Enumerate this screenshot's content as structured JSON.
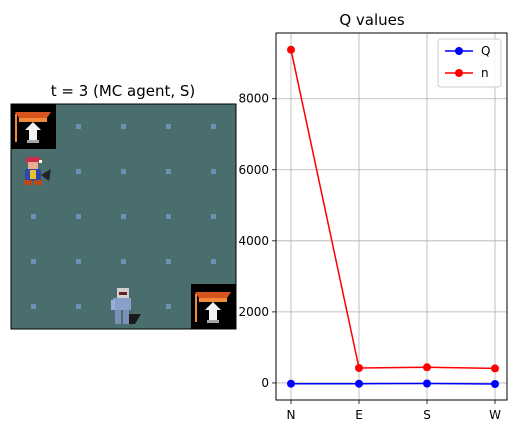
{
  "grid_panel": {
    "title": "t = 3 (MC agent, S)",
    "cols": 5,
    "rows": 5,
    "floor_color": "#4a6e6e",
    "dot_color": "#6f8fb5",
    "sprites": [
      {
        "name": "ladder-top-left-icon",
        "col": 0,
        "row": 0
      },
      {
        "name": "ladder-bottom-right-icon",
        "col": 4,
        "row": 4
      },
      {
        "name": "rogue-npc-icon",
        "col": 0,
        "row": 1
      },
      {
        "name": "agent-figure-icon",
        "col": 2,
        "row": 4
      }
    ]
  },
  "chart_data": {
    "type": "line",
    "title": "Q values",
    "categories": [
      "N",
      "E",
      "S",
      "W"
    ],
    "series": [
      {
        "name": "Q",
        "color": "#0000ff",
        "values": [
          -20,
          -20,
          -15,
          -30
        ]
      },
      {
        "name": "n",
        "color": "#ff0000",
        "values": [
          9380,
          420,
          440,
          410
        ]
      }
    ],
    "yticks": [
      0,
      2000,
      4000,
      6000,
      8000
    ],
    "ylim": [
      -480,
      9850
    ],
    "grid": true,
    "legend": "top-right"
  }
}
